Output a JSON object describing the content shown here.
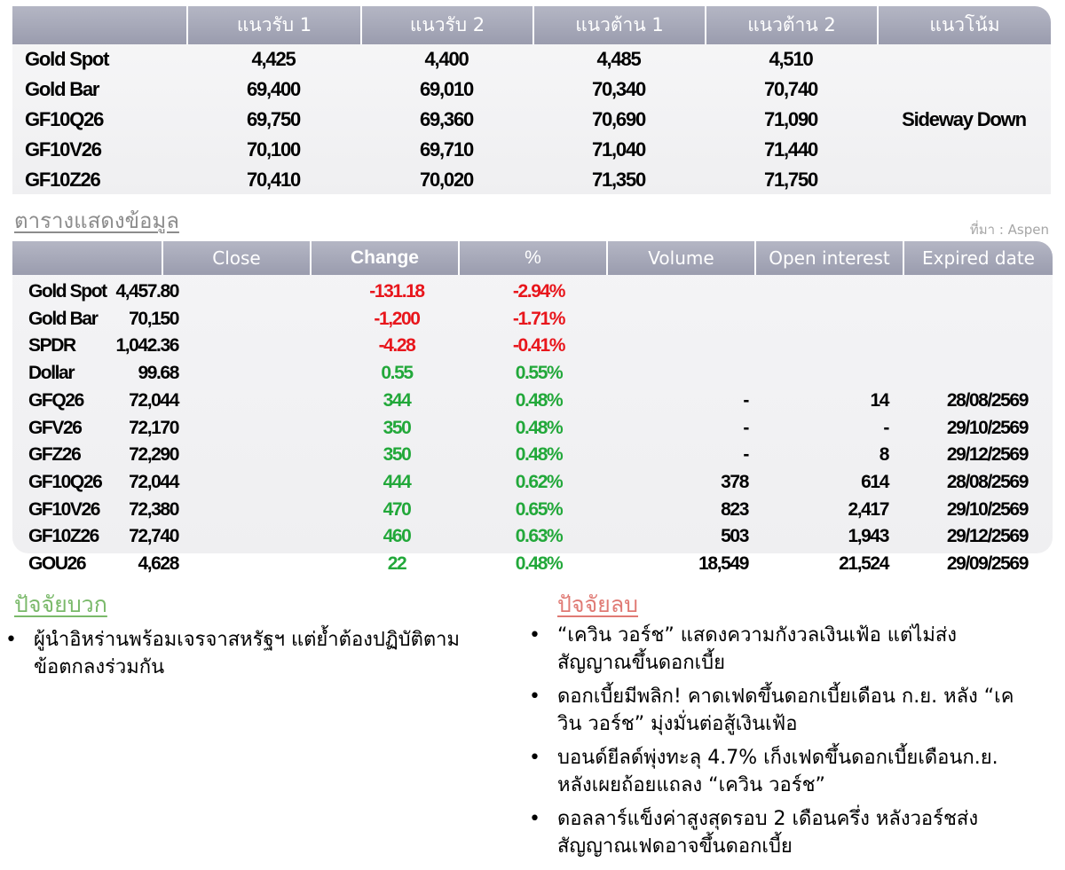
{
  "sr_table": {
    "headers": [
      "",
      "แนวรับ 1",
      "แนวรับ 2",
      "แนวต้าน 1",
      "แนวต้าน 2",
      "แนวโน้ม"
    ],
    "rows": [
      {
        "name": "Gold Spot",
        "s1": "4,425",
        "s2": "4,400",
        "r1": "4,485",
        "r2": "4,510"
      },
      {
        "name": "Gold Bar",
        "s1": "69,400",
        "s2": "69,010",
        "r1": "70,340",
        "r2": "70,740"
      },
      {
        "name": "GF10Q26",
        "s1": "69,750",
        "s2": "69,360",
        "r1": "70,690",
        "r2": "71,090"
      },
      {
        "name": "GF10V26",
        "s1": "70,100",
        "s2": "69,710",
        "r1": "71,040",
        "r2": "71,440"
      },
      {
        "name": "GF10Z26",
        "s1": "70,410",
        "s2": "70,020",
        "r1": "71,350",
        "r2": "71,750"
      }
    ],
    "trend": "Sideway Down"
  },
  "section_title": "ตารางแสดงข้อมูล",
  "source": "ที่มา : Aspen",
  "data_table": {
    "headers": [
      "",
      "Close",
      "Change",
      "%",
      "Volume",
      "Open interest",
      "Expired date"
    ],
    "rows": [
      {
        "name": "Gold Spot",
        "close": "4,457.80",
        "change": "-131.18",
        "pct": "-2.94%",
        "volume": "",
        "oi": "",
        "expiry": "",
        "dir": "red"
      },
      {
        "name": "Gold Bar",
        "close": "70,150",
        "change": "-1,200",
        "pct": "-1.71%",
        "volume": "",
        "oi": "",
        "expiry": "",
        "dir": "red"
      },
      {
        "name": "SPDR",
        "close": "1,042.36",
        "change": "-4.28",
        "pct": "-0.41%",
        "volume": "",
        "oi": "",
        "expiry": "",
        "dir": "red"
      },
      {
        "name": "Dollar",
        "close": "99.68",
        "change": "0.55",
        "pct": "0.55%",
        "volume": "",
        "oi": "",
        "expiry": "",
        "dir": "green"
      },
      {
        "name": "GFQ26",
        "close": "72,044",
        "change": "344",
        "pct": "0.48%",
        "volume": "-",
        "oi": "14",
        "expiry": "28/08/2569",
        "dir": "green"
      },
      {
        "name": "GFV26",
        "close": "72,170",
        "change": "350",
        "pct": "0.48%",
        "volume": "-",
        "oi": "-",
        "expiry": "29/10/2569",
        "dir": "green"
      },
      {
        "name": "GFZ26",
        "close": "72,290",
        "change": "350",
        "pct": "0.48%",
        "volume": "-",
        "oi": "8",
        "expiry": "29/12/2569",
        "dir": "green"
      },
      {
        "name": "GF10Q26",
        "close": "72,044",
        "change": "444",
        "pct": "0.62%",
        "volume": "378",
        "oi": "614",
        "expiry": "28/08/2569",
        "dir": "green"
      },
      {
        "name": "GF10V26",
        "close": "72,380",
        "change": "470",
        "pct": "0.65%",
        "volume": "823",
        "oi": "2,417",
        "expiry": "29/10/2569",
        "dir": "green"
      },
      {
        "name": "GF10Z26",
        "close": "72,740",
        "change": "460",
        "pct": "0.63%",
        "volume": "503",
        "oi": "1,943",
        "expiry": "29/12/2569",
        "dir": "green"
      },
      {
        "name": "GOU26",
        "close": "4,628",
        "change": "22",
        "pct": "0.48%",
        "volume": "18,549",
        "oi": "21,524",
        "expiry": "29/09/2569",
        "dir": "green"
      }
    ]
  },
  "positive": {
    "title": "ปัจจัยบวก",
    "items": [
      "ผู้นำอิหร่านพร้อมเจรจาสหรัฐฯ แต่ย้ำต้องปฏิบัติตามข้อตกลงร่วมกัน"
    ]
  },
  "negative": {
    "title": "ปัจจัยลบ",
    "items": [
      "“เควิน วอร์ช” แสดงความกังวลเงินเฟ้อ แต่ไม่ส่งสัญญาณขึ้นดอกเบี้ย",
      "ดอกเบี้ยมีพลิก! คาดเฟดขึ้นดอกเบี้ยเดือน ก.ย. หลัง “เควิน วอร์ช” มุ่งมั่นต่อสู้เงินเฟ้อ",
      "บอนด์ยีลด์พุ่งทะลุ 4.7% เก็งเฟดขึ้นดอกเบี้ยเดือนก.ย. หลังเผยถ้อยแถลง “เควิน วอร์ช”",
      "ดอลลาร์แข็งค่าสูงสุดรอบ 2 เดือนครึ่ง หลังวอร์ชส่งสัญญาณเฟดอาจขึ้นดอกเบี้ย"
    ]
  },
  "colors": {
    "header": "#a5a7b8",
    "down": "#e8161c",
    "up": "#22a83a",
    "positive_title": "#7ab96a",
    "negative_title": "#e07a74"
  }
}
